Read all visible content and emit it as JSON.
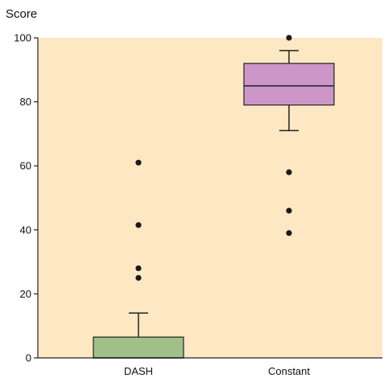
{
  "chart_data": {
    "type": "box",
    "ylabel": "Score",
    "xlabel": "",
    "ylim": [
      0,
      100
    ],
    "yticks": [
      0,
      20,
      40,
      60,
      80,
      100
    ],
    "categories": [
      "DASH",
      "Constant"
    ],
    "boxes": [
      {
        "category": "DASH",
        "min": 0,
        "q1": 0,
        "median": 0,
        "q3": 6.5,
        "whisker_high": 14,
        "outliers": [
          61,
          41.5,
          28,
          25
        ],
        "color": "#a0c08a"
      },
      {
        "category": "Constant",
        "min": 71,
        "q1": 79,
        "median": 85,
        "q3": 92,
        "whisker_high": 96,
        "outliers": [
          100,
          58,
          46,
          39
        ],
        "color": "#cc96c8"
      }
    ],
    "colors": {
      "plot_background": "#fde8c3",
      "axis": "#222222",
      "outlier": "#1a1a1a"
    },
    "grid": false
  }
}
